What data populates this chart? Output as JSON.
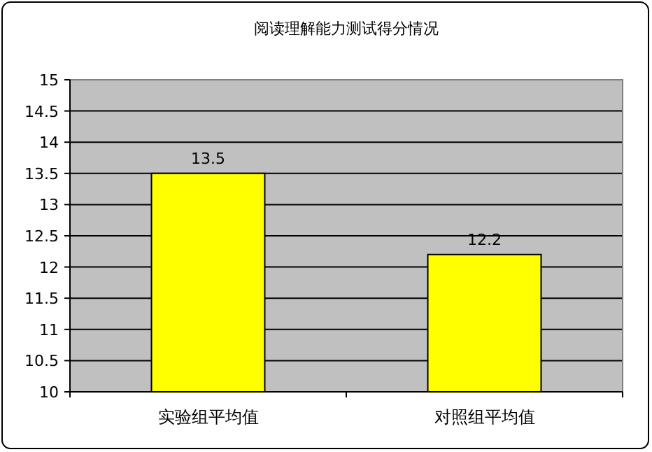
{
  "chart_data": {
    "type": "bar",
    "title": "阅读理解能力测试得分情况",
    "categories": [
      "实验组平均值",
      "对照组平均值"
    ],
    "values": [
      13.5,
      12.2
    ],
    "color": "#ffff00",
    "ylim": [
      10,
      15
    ],
    "yticks": [
      10,
      10.5,
      11,
      11.5,
      12,
      12.5,
      13,
      13.5,
      14,
      14.5,
      15
    ],
    "grid": "y",
    "data_labels": true
  }
}
